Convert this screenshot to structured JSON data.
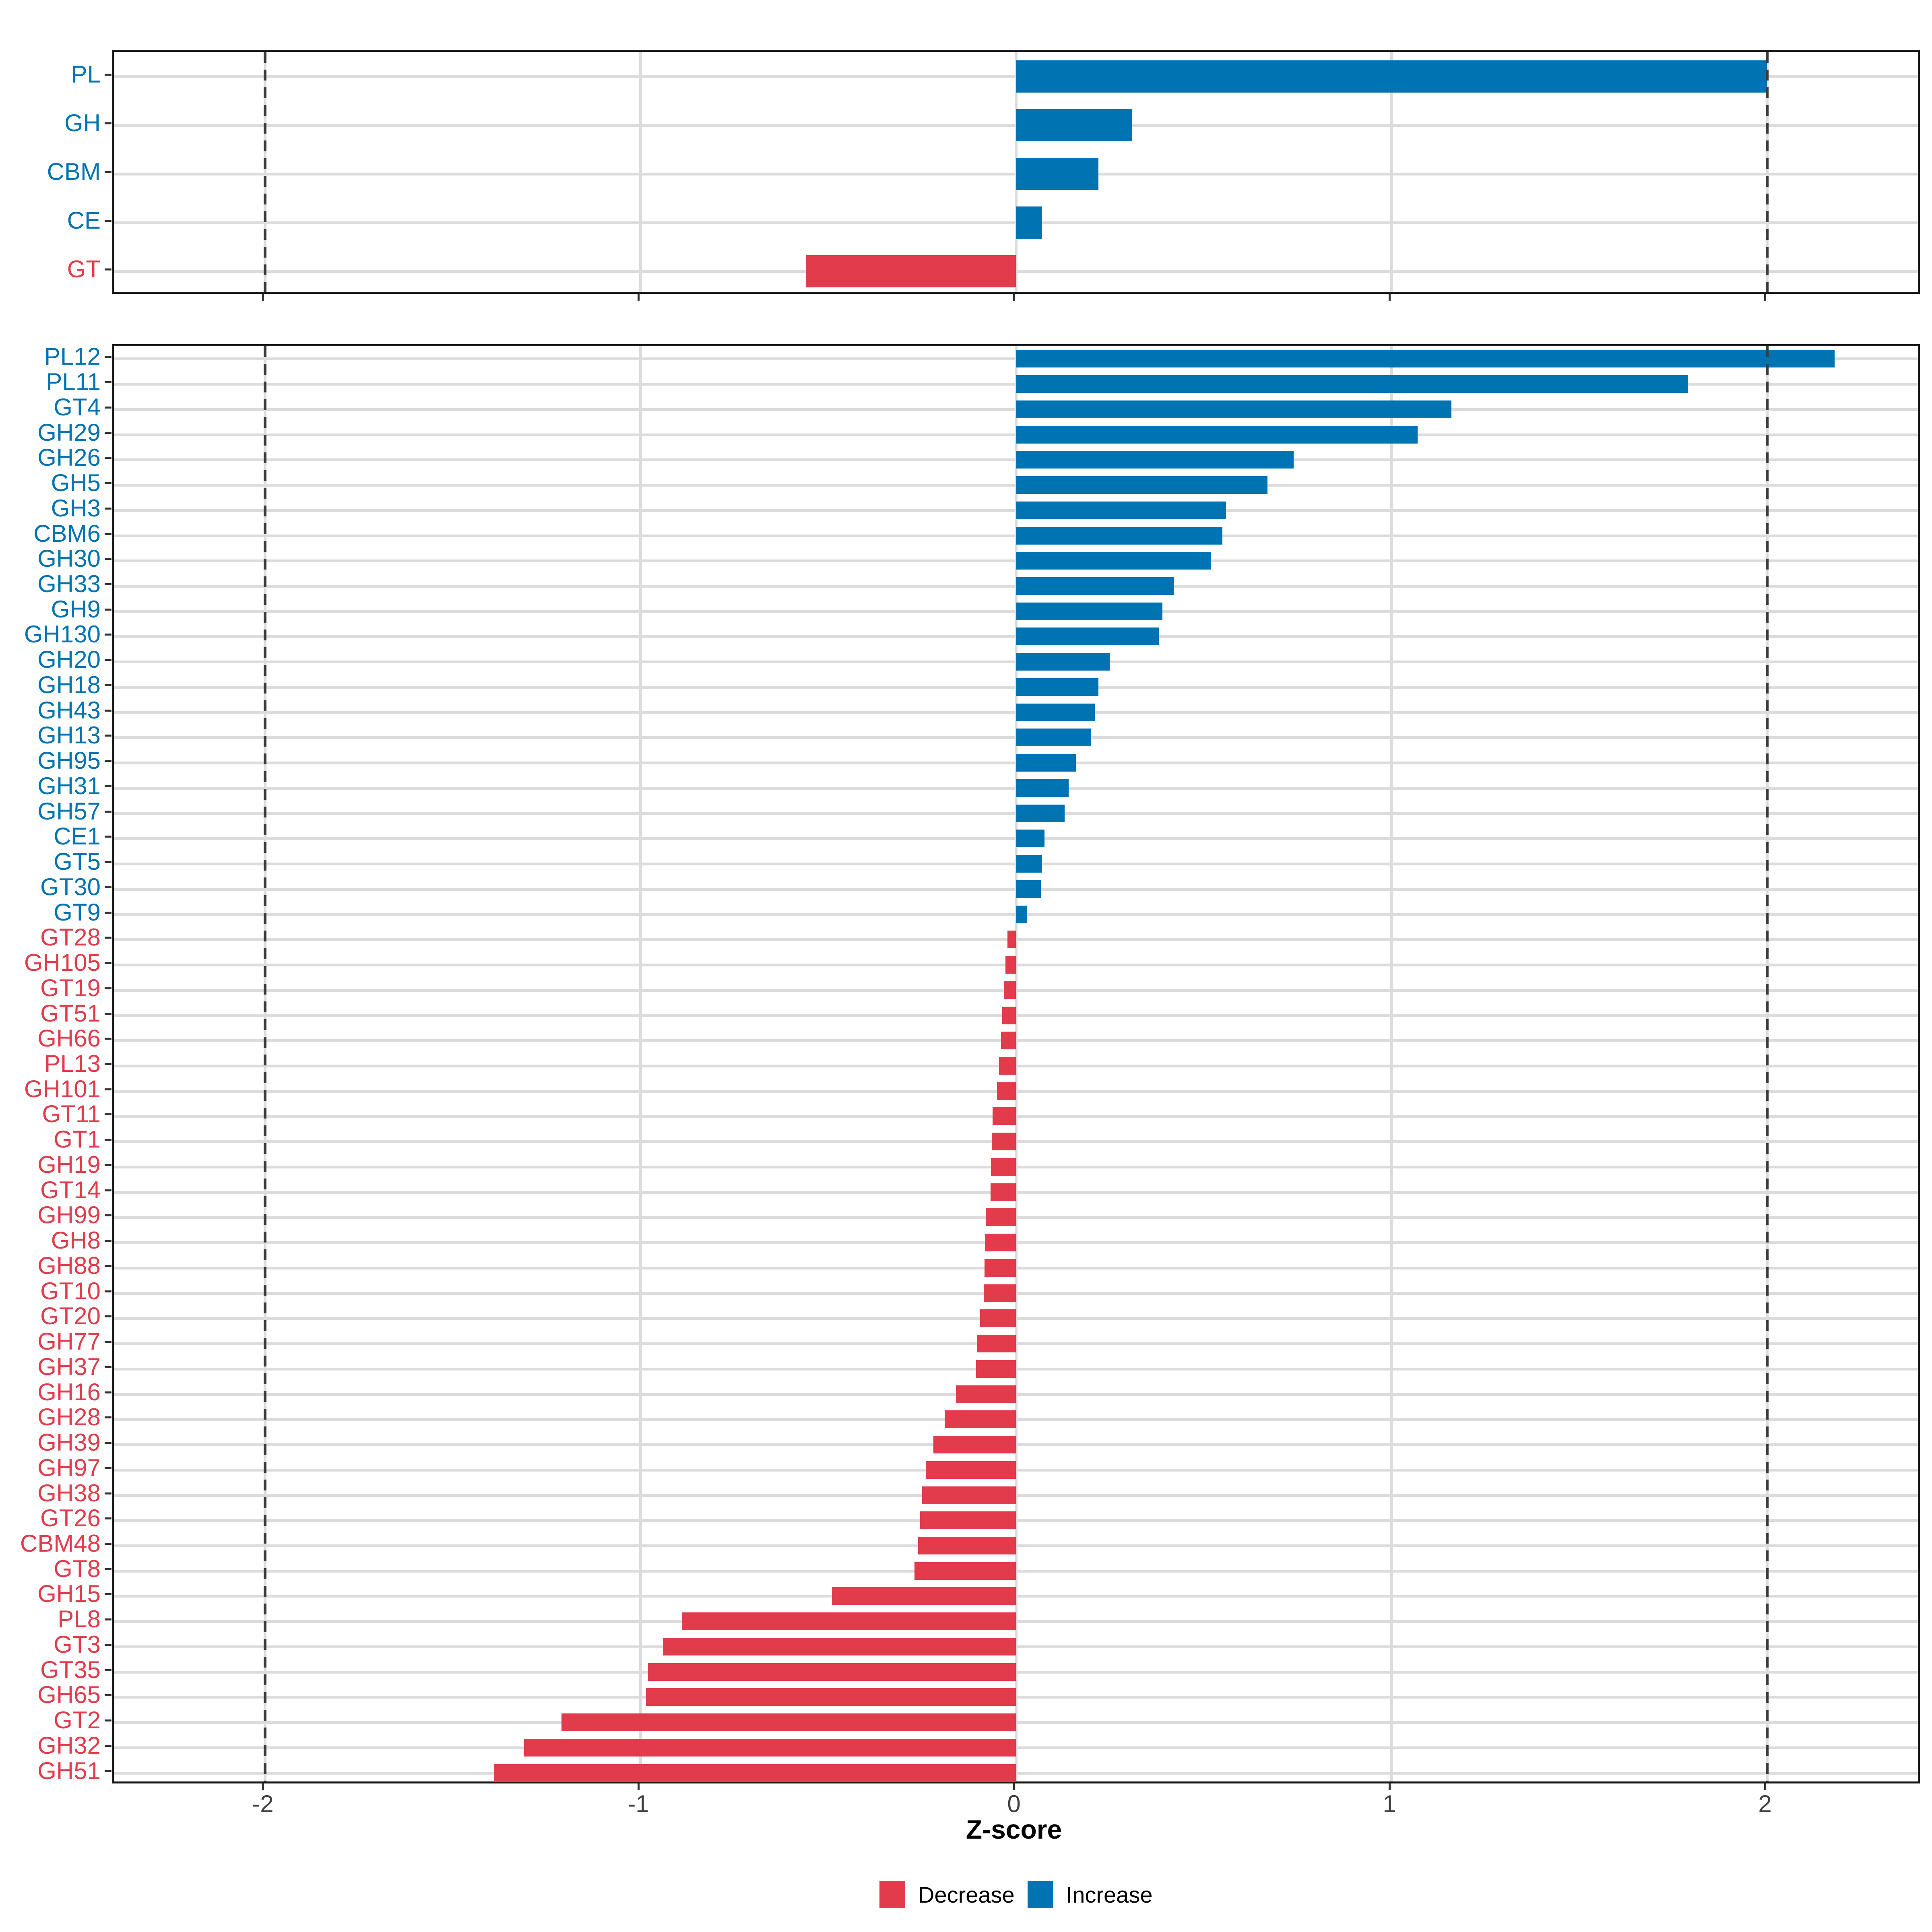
{
  "x_axis": {
    "title": "Z-score",
    "tick_labels": [
      "-2",
      "-1",
      "0",
      "1",
      "2"
    ],
    "tick_values": [
      -2,
      -1,
      0,
      1,
      2
    ]
  },
  "legend": {
    "decrease_label": "Decrease",
    "increase_label": "Increase"
  },
  "colors": {
    "increase": "#0073B2",
    "decrease": "#E23B4C",
    "gridline": "#dcdcdc",
    "reference_line": "#3b3b3b"
  },
  "chart_data": [
    {
      "type": "bar",
      "orientation": "horizontal",
      "panel": "cazyme-classes",
      "xlabel": "Z-score",
      "xlim": [
        -2.4,
        2.4
      ],
      "grid_x": [
        -2,
        -1,
        0,
        1,
        2
      ],
      "reference_lines_x": [
        -2,
        2
      ],
      "legend_position": "bottom",
      "categories": [
        "PL",
        "GH",
        "CBM",
        "CE",
        "GT"
      ],
      "values": [
        2.0,
        0.31,
        0.22,
        0.07,
        -0.56
      ],
      "directions": [
        "Increase",
        "Increase",
        "Increase",
        "Increase",
        "Decrease"
      ]
    },
    {
      "type": "bar",
      "orientation": "horizontal",
      "panel": "cazyme-families",
      "xlabel": "Z-score",
      "xlim": [
        -2.4,
        2.4
      ],
      "grid_x": [
        -2,
        -1,
        0,
        1,
        2
      ],
      "reference_lines_x": [
        -2,
        2
      ],
      "legend_position": "bottom",
      "categories": [
        "PL12",
        "PL11",
        "GT4",
        "GH29",
        "GH26",
        "GH5",
        "GH3",
        "CBM6",
        "GH30",
        "GH33",
        "GH9",
        "GH130",
        "GH20",
        "GH18",
        "GH43",
        "GH13",
        "GH95",
        "GH31",
        "GH57",
        "CE1",
        "GT5",
        "GT30",
        "GT9",
        "GT28",
        "GH105",
        "GT19",
        "GT51",
        "GH66",
        "PL13",
        "GH101",
        "GT11",
        "GT1",
        "GH19",
        "GT14",
        "GH99",
        "GH8",
        "GH88",
        "GT10",
        "GT20",
        "GH77",
        "GH37",
        "GH16",
        "GH28",
        "GH39",
        "GH97",
        "GH38",
        "GT26",
        "CBM48",
        "GT8",
        "GH15",
        "PL8",
        "GT3",
        "GT35",
        "GH65",
        "GT2",
        "GH32",
        "GH51"
      ],
      "values": [
        2.18,
        1.79,
        1.16,
        1.07,
        0.74,
        0.67,
        0.56,
        0.55,
        0.52,
        0.42,
        0.39,
        0.38,
        0.25,
        0.22,
        0.21,
        0.2,
        0.16,
        0.14,
        0.13,
        0.076,
        0.07,
        0.066,
        0.03,
        -0.022,
        -0.028,
        -0.032,
        -0.036,
        -0.04,
        -0.045,
        -0.05,
        -0.062,
        -0.064,
        -0.066,
        -0.068,
        -0.08,
        -0.082,
        -0.084,
        -0.086,
        -0.095,
        -0.104,
        -0.106,
        -0.16,
        -0.19,
        -0.22,
        -0.24,
        -0.25,
        -0.255,
        -0.26,
        -0.27,
        -0.49,
        -0.89,
        -0.94,
        -0.98,
        -0.985,
        -1.21,
        -1.31,
        -1.39
      ],
      "directions": [
        "Increase",
        "Increase",
        "Increase",
        "Increase",
        "Increase",
        "Increase",
        "Increase",
        "Increase",
        "Increase",
        "Increase",
        "Increase",
        "Increase",
        "Increase",
        "Increase",
        "Increase",
        "Increase",
        "Increase",
        "Increase",
        "Increase",
        "Increase",
        "Increase",
        "Increase",
        "Increase",
        "Decrease",
        "Decrease",
        "Decrease",
        "Decrease",
        "Decrease",
        "Decrease",
        "Decrease",
        "Decrease",
        "Decrease",
        "Decrease",
        "Decrease",
        "Decrease",
        "Decrease",
        "Decrease",
        "Decrease",
        "Decrease",
        "Decrease",
        "Decrease",
        "Decrease",
        "Decrease",
        "Decrease",
        "Decrease",
        "Decrease",
        "Decrease",
        "Decrease",
        "Decrease",
        "Decrease",
        "Decrease",
        "Decrease",
        "Decrease",
        "Decrease",
        "Decrease",
        "Decrease",
        "Decrease"
      ]
    }
  ]
}
